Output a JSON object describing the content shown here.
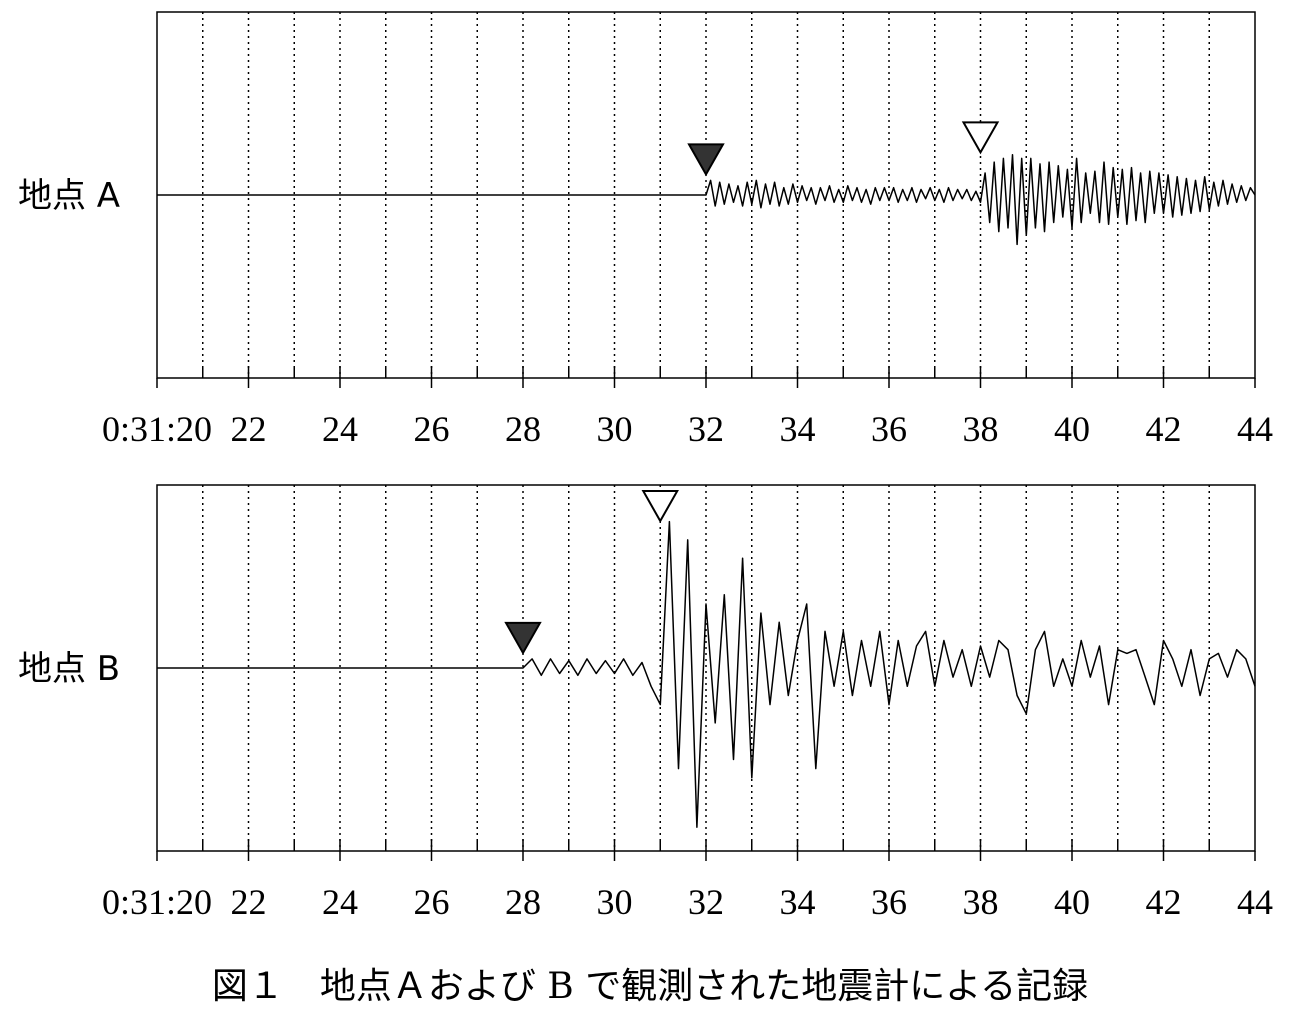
{
  "caption": "図１　地点Ａおよび B で観測された地震計による記録",
  "chart_data": [
    {
      "type": "line",
      "label": "地点 A",
      "color": "#000000",
      "xlim": [
        20,
        44
      ],
      "ylim": [
        -1,
        1
      ],
      "xticks": [
        {
          "value": 20,
          "label": "0:31:20"
        },
        22,
        24,
        26,
        28,
        30,
        32,
        34,
        36,
        38,
        40,
        42,
        44
      ],
      "minor_xticks": [
        21,
        22,
        23,
        24,
        25,
        26,
        27,
        28,
        29,
        30,
        31,
        32,
        33,
        34,
        35,
        36,
        37,
        38,
        39,
        40,
        41,
        42,
        43
      ],
      "markers": [
        {
          "x": 32,
          "filled": true
        },
        {
          "x": 38,
          "filled": false
        }
      ],
      "x": [
        20,
        32,
        32.1,
        32.2,
        32.3,
        32.4,
        32.5,
        32.6,
        32.7,
        32.8,
        32.9,
        33,
        33.1,
        33.2,
        33.3,
        33.4,
        33.5,
        33.6,
        33.7,
        33.8,
        33.9,
        34,
        34.1,
        34.2,
        34.3,
        34.4,
        34.5,
        34.6,
        34.7,
        34.8,
        34.9,
        35,
        35.1,
        35.2,
        35.3,
        35.4,
        35.5,
        35.6,
        35.7,
        35.8,
        35.9,
        36,
        36.1,
        36.2,
        36.3,
        36.4,
        36.5,
        36.6,
        36.7,
        36.8,
        36.9,
        37,
        37.1,
        37.2,
        37.3,
        37.4,
        37.5,
        37.6,
        37.7,
        37.8,
        37.9,
        38,
        38.1,
        38.2,
        38.3,
        38.4,
        38.5,
        38.6,
        38.7,
        38.8,
        38.9,
        39,
        39.1,
        39.2,
        39.3,
        39.4,
        39.5,
        39.6,
        39.7,
        39.8,
        39.9,
        40,
        40.1,
        40.2,
        40.3,
        40.4,
        40.5,
        40.6,
        40.7,
        40.8,
        40.9,
        41,
        41.1,
        41.2,
        41.3,
        41.4,
        41.5,
        41.6,
        41.7,
        41.8,
        41.9,
        42,
        42.1,
        42.2,
        42.3,
        42.4,
        42.5,
        42.6,
        42.7,
        42.8,
        42.9,
        43,
        43.1,
        43.2,
        43.3,
        43.4,
        43.5,
        43.6,
        43.7,
        43.8,
        43.9,
        44
      ],
      "values": [
        0,
        0,
        0.08,
        -0.06,
        0.07,
        -0.05,
        0.06,
        -0.04,
        0.05,
        -0.06,
        0.07,
        -0.05,
        0.08,
        -0.07,
        0.06,
        -0.05,
        0.07,
        -0.06,
        0.04,
        -0.05,
        0.06,
        -0.04,
        0.05,
        -0.03,
        0.04,
        -0.05,
        0.04,
        -0.03,
        0.05,
        -0.04,
        0.03,
        -0.04,
        0.05,
        -0.03,
        0.04,
        -0.04,
        0.03,
        -0.05,
        0.04,
        -0.03,
        0.04,
        -0.03,
        0.04,
        -0.04,
        0.03,
        -0.03,
        0.04,
        -0.04,
        0.03,
        -0.02,
        0.04,
        -0.03,
        0.03,
        -0.04,
        0.04,
        -0.03,
        0.03,
        -0.02,
        0.03,
        -0.03,
        0.02,
        -0.04,
        0.12,
        -0.15,
        0.18,
        -0.2,
        0.2,
        -0.18,
        0.22,
        -0.27,
        0.2,
        -0.22,
        0.2,
        -0.18,
        0.17,
        -0.2,
        0.18,
        -0.15,
        0.16,
        -0.12,
        0.14,
        -0.18,
        0.2,
        -0.15,
        0.12,
        -0.1,
        0.13,
        -0.15,
        0.18,
        -0.16,
        0.15,
        -0.12,
        0.14,
        -0.16,
        0.15,
        -0.14,
        0.12,
        -0.15,
        0.13,
        -0.1,
        0.12,
        -0.1,
        0.11,
        -0.12,
        0.1,
        -0.11,
        0.09,
        -0.1,
        0.08,
        -0.09,
        0.1,
        -0.08,
        0.07,
        -0.06,
        0.08,
        -0.05,
        0.06,
        -0.04,
        0.05,
        -0.03,
        0.04,
        0
      ]
    },
    {
      "type": "line",
      "label": "地点 B",
      "color": "#000000",
      "xlim": [
        20,
        44
      ],
      "ylim": [
        -1,
        1
      ],
      "xticks": [
        {
          "value": 20,
          "label": "0:31:20"
        },
        22,
        24,
        26,
        28,
        30,
        32,
        34,
        36,
        38,
        40,
        42,
        44
      ],
      "minor_xticks": [
        21,
        22,
        23,
        24,
        25,
        26,
        27,
        28,
        29,
        30,
        31,
        32,
        33,
        34,
        35,
        36,
        37,
        38,
        39,
        40,
        41,
        42,
        43
      ],
      "markers": [
        {
          "x": 28,
          "filled": true
        },
        {
          "x": 31,
          "filled": false
        }
      ],
      "x": [
        20,
        28,
        28.2,
        28.4,
        28.6,
        28.8,
        29,
        29.2,
        29.4,
        29.6,
        29.8,
        30,
        30.2,
        30.4,
        30.6,
        30.8,
        31,
        31.2,
        31.4,
        31.6,
        31.8,
        32,
        32.2,
        32.4,
        32.6,
        32.8,
        33,
        33.2,
        33.4,
        33.6,
        33.8,
        34,
        34.2,
        34.4,
        34.6,
        34.8,
        35,
        35.2,
        35.4,
        35.6,
        35.8,
        36,
        36.2,
        36.4,
        36.6,
        36.8,
        37,
        37.2,
        37.4,
        37.6,
        37.8,
        38,
        38.2,
        38.4,
        38.6,
        38.8,
        39,
        39.2,
        39.4,
        39.6,
        39.8,
        40,
        40.2,
        40.4,
        40.6,
        40.8,
        41,
        41.2,
        41.4,
        41.6,
        41.8,
        42,
        42.2,
        42.4,
        42.6,
        42.8,
        43,
        43.2,
        43.4,
        43.6,
        43.8,
        44
      ],
      "values": [
        0,
        0,
        0.05,
        -0.04,
        0.05,
        -0.03,
        0.04,
        -0.04,
        0.05,
        -0.03,
        0.04,
        -0.03,
        0.05,
        -0.04,
        0.03,
        -0.1,
        -0.2,
        0.8,
        -0.55,
        0.7,
        -0.87,
        0.35,
        -0.3,
        0.4,
        -0.5,
        0.6,
        -0.6,
        0.3,
        -0.2,
        0.25,
        -0.15,
        0.15,
        0.35,
        -0.55,
        0.2,
        -0.1,
        0.2,
        -0.15,
        0.15,
        -0.1,
        0.2,
        -0.2,
        0.15,
        -0.1,
        0.12,
        0.2,
        -0.1,
        0.15,
        -0.05,
        0.1,
        -0.1,
        0.12,
        -0.05,
        0.15,
        0.1,
        -0.15,
        -0.25,
        0.1,
        0.2,
        -0.1,
        0.05,
        -0.1,
        0.15,
        -0.05,
        0.12,
        -0.2,
        0.1,
        0.08,
        0.1,
        -0.05,
        -0.2,
        0.15,
        0.05,
        -0.1,
        0.1,
        -0.15,
        0.05,
        0.08,
        -0.05,
        0.1,
        0.05,
        -0.1
      ]
    }
  ]
}
